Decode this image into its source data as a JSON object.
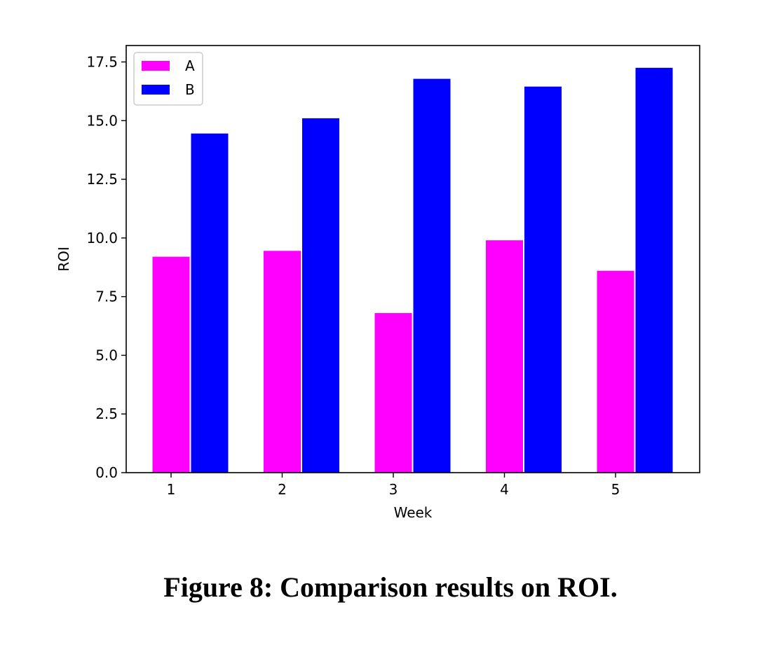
{
  "chart_data": {
    "type": "bar",
    "categories": [
      "1",
      "2",
      "3",
      "4",
      "5"
    ],
    "series": [
      {
        "name": "A",
        "color": "#ff00ff",
        "values": [
          9.2,
          9.45,
          6.8,
          9.9,
          8.6
        ]
      },
      {
        "name": "B",
        "color": "#0000ff",
        "values": [
          14.45,
          15.1,
          16.78,
          16.45,
          17.25
        ]
      }
    ],
    "xlabel": "Week",
    "ylabel": "ROI",
    "ylim": [
      0,
      18.2
    ],
    "yticks": [
      "0.0",
      "2.5",
      "5.0",
      "7.5",
      "10.0",
      "12.5",
      "15.0",
      "17.5"
    ],
    "grid": false,
    "legend_position": "top-left"
  },
  "caption": "Figure 8: Comparison results on ROI."
}
